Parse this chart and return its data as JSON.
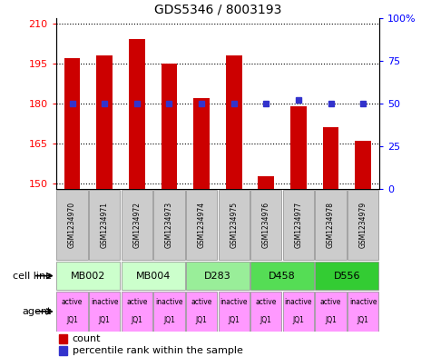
{
  "title": "GDS5346 / 8003193",
  "samples": [
    "GSM1234970",
    "GSM1234971",
    "GSM1234972",
    "GSM1234973",
    "GSM1234974",
    "GSM1234975",
    "GSM1234976",
    "GSM1234977",
    "GSM1234978",
    "GSM1234979"
  ],
  "counts": [
    197,
    198,
    204,
    195,
    182,
    198,
    153,
    179,
    171,
    166
  ],
  "percentile_ranks": [
    50,
    50,
    50,
    50,
    50,
    50,
    50,
    52,
    50,
    50
  ],
  "ylim_left": [
    148,
    212
  ],
  "ylim_right": [
    0,
    100
  ],
  "yticks_left": [
    150,
    165,
    180,
    195,
    210
  ],
  "yticks_right": [
    0,
    25,
    50,
    75,
    100
  ],
  "cell_lines": [
    {
      "label": "MB002",
      "cols": [
        0,
        1
      ],
      "color": "#ccffcc"
    },
    {
      "label": "MB004",
      "cols": [
        2,
        3
      ],
      "color": "#ccffcc"
    },
    {
      "label": "D283",
      "cols": [
        4,
        5
      ],
      "color": "#99ee99"
    },
    {
      "label": "D458",
      "cols": [
        6,
        7
      ],
      "color": "#55dd55"
    },
    {
      "label": "D556",
      "cols": [
        8,
        9
      ],
      "color": "#33cc33"
    }
  ],
  "agents": [
    "active\nJQ1",
    "inactive\nJQ1",
    "active\nJQ1",
    "inactive\nJQ1",
    "active\nJQ1",
    "inactive\nJQ1",
    "active\nJQ1",
    "inactive\nJQ1",
    "active\nJQ1",
    "inactive\nJQ1"
  ],
  "agent_color": "#ff99ff",
  "bar_color": "#cc0000",
  "dot_color": "#3333cc",
  "bar_width": 0.5,
  "base_value": 148,
  "sample_box_color": "#cccccc",
  "fig_width": 4.75,
  "fig_height": 3.93,
  "dpi": 100
}
